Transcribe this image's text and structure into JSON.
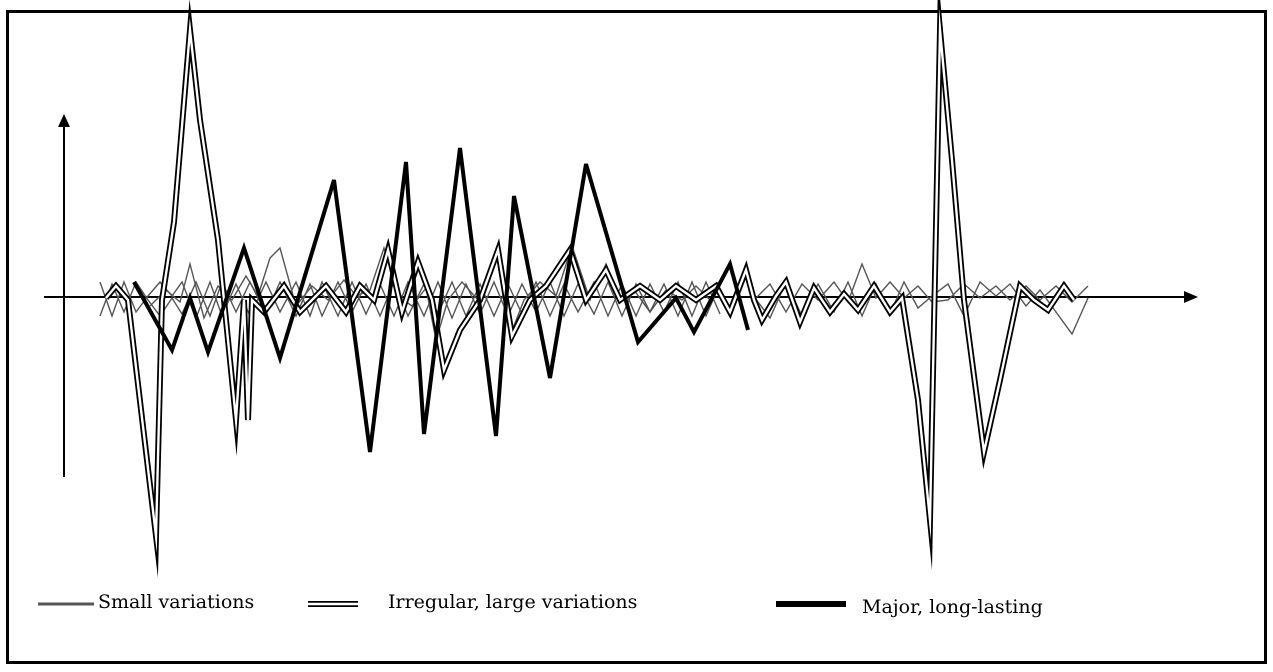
{
  "legend": {
    "small_label": "Small variations",
    "irregular_label": "Irregular, large variations",
    "major_label": "Major, long-lasting"
  },
  "colors": {
    "small": "#555555",
    "irregular": "#000000",
    "major": "#000000",
    "axis": "#000000"
  }
}
